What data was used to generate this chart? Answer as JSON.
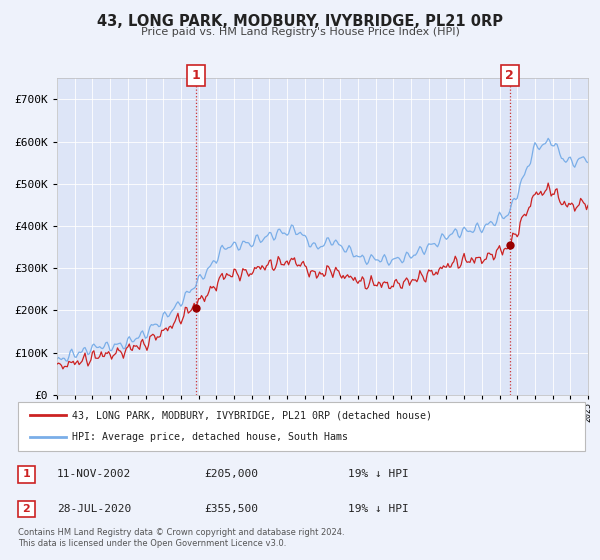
{
  "title": "43, LONG PARK, MODBURY, IVYBRIDGE, PL21 0RP",
  "subtitle": "Price paid vs. HM Land Registry's House Price Index (HPI)",
  "background_color": "#eef2fb",
  "plot_bg_color": "#dde5f7",
  "hpi_color": "#7aaee8",
  "price_color": "#cc2222",
  "marker_color": "#990000",
  "sale1_date_num": 2002.87,
  "sale1_price": 205000,
  "sale1_label": "11-NOV-2002",
  "sale1_amount": "£205,000",
  "sale1_pct": "19% ↓ HPI",
  "sale2_date_num": 2020.58,
  "sale2_price": 355500,
  "sale2_label": "28-JUL-2020",
  "sale2_amount": "£355,500",
  "sale2_pct": "19% ↓ HPI",
  "legend_property": "43, LONG PARK, MODBURY, IVYBRIDGE, PL21 0RP (detached house)",
  "legend_hpi": "HPI: Average price, detached house, South Hams",
  "footer": "Contains HM Land Registry data © Crown copyright and database right 2024.\nThis data is licensed under the Open Government Licence v3.0.",
  "ylim_max": 750000,
  "xmin": 1995,
  "xmax": 2025
}
